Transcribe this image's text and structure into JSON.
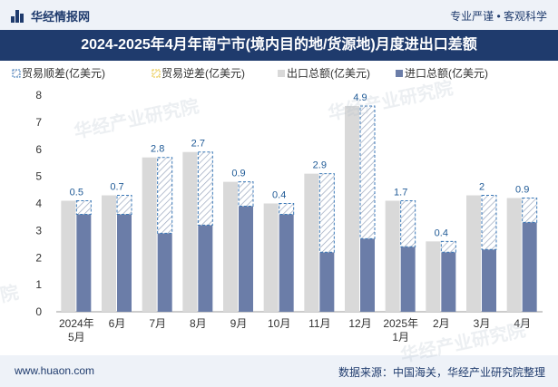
{
  "header": {
    "site_name": "华经情报网",
    "tags": "专业严谨 • 客观科学"
  },
  "title": "2024-2025年4月年南宁市(境内目的地/货源地)月度进出口差额",
  "footer": {
    "website": "www.huaon.com",
    "source": "数据来源：中国海关，华经产业研究院整理"
  },
  "watermarks": [
    "华经产业研究院",
    "华经产业研究院",
    "华经产业研究院",
    "院"
  ],
  "colors": {
    "export": "#d9d9d9",
    "import": "#6b7da8",
    "surplus_stroke": "#3c7ab8",
    "deficit_stroke": "#e8c43c",
    "title_bg": "#1f3b6d",
    "header_bg": "#eef2f8"
  },
  "chart_data": {
    "type": "bar",
    "legend": [
      {
        "name": "贸易顺差(亿美元)",
        "style": "hatched-blue"
      },
      {
        "name": "贸易逆差(亿美元)",
        "style": "hatched-yellow"
      },
      {
        "name": "出口总额(亿美元)",
        "style": "solid-gray"
      },
      {
        "name": "进口总额(亿美元)",
        "style": "solid-blue"
      }
    ],
    "legend_position": "top-left",
    "categories": [
      "2024年\n5月",
      "6月",
      "7月",
      "8月",
      "9月",
      "10月",
      "11月",
      "12月",
      "2025年\n1月",
      "2月",
      "3月",
      "4月"
    ],
    "series": [
      {
        "name": "出口总额(亿美元)",
        "values": [
          4.1,
          4.3,
          5.7,
          5.9,
          4.8,
          4.0,
          5.1,
          7.6,
          4.1,
          2.6,
          4.3,
          4.2
        ]
      },
      {
        "name": "进口总额(亿美元)",
        "values": [
          3.6,
          3.6,
          2.9,
          3.2,
          3.9,
          3.6,
          2.2,
          2.7,
          2.4,
          2.2,
          2.3,
          3.3
        ]
      },
      {
        "name": "贸易顺差(亿美元)",
        "values": [
          0.5,
          0.7,
          2.8,
          2.7,
          0.9,
          0.4,
          2.9,
          4.9,
          1.7,
          0.4,
          2,
          0.9
        ]
      },
      {
        "name": "贸易逆差(亿美元)",
        "values": [
          0,
          0,
          0,
          0,
          0,
          0,
          0,
          0,
          0,
          0,
          0,
          0
        ]
      }
    ],
    "data_labels": [
      "0.5",
      "0.7",
      "2.8",
      "2.7",
      "0.9",
      "0.4",
      "2.9",
      "4.9",
      "1.7",
      "0.4",
      "2",
      "0.9"
    ],
    "ylim": [
      0,
      8
    ],
    "yticks": [
      "0",
      "1",
      "2",
      "3",
      "4",
      "5",
      "6",
      "7",
      "8"
    ],
    "grid": false
  }
}
